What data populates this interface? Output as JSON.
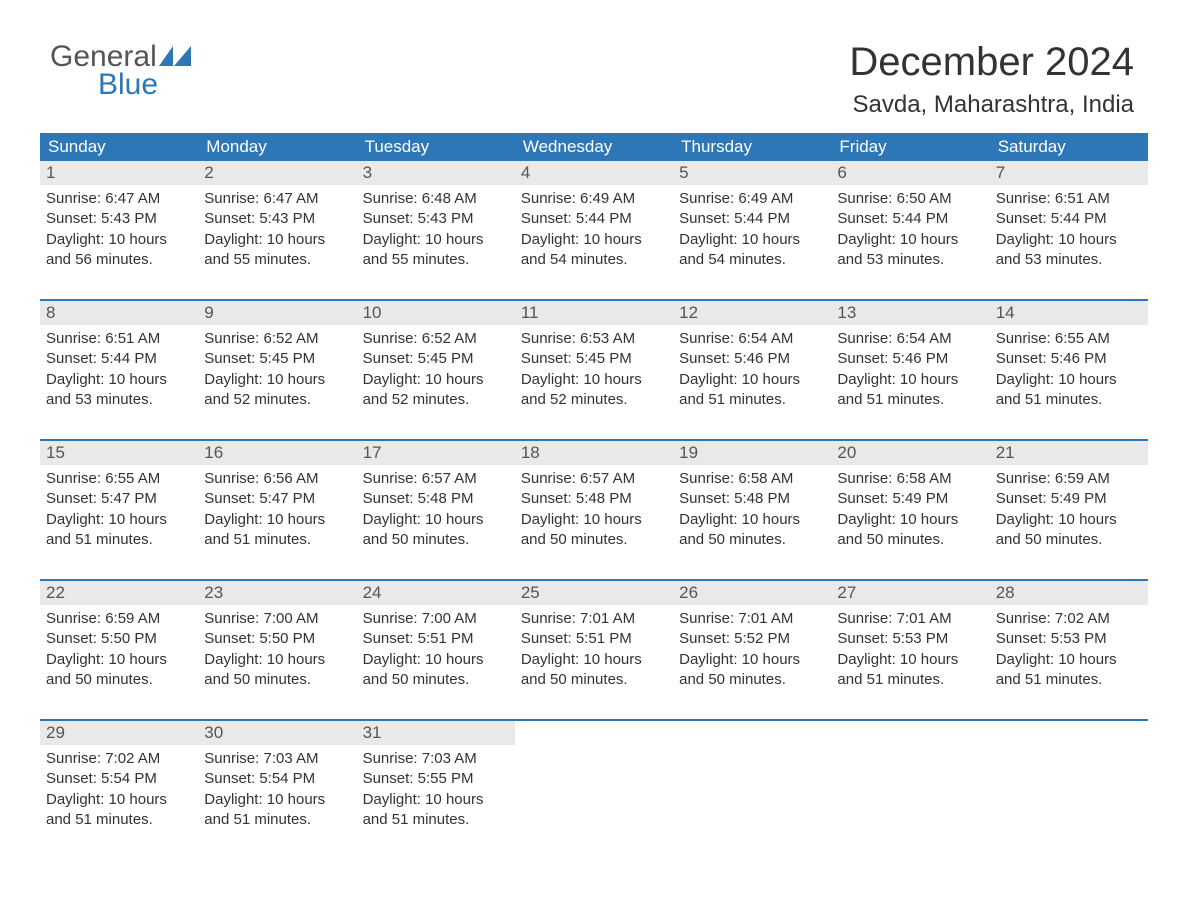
{
  "logo": {
    "text_general": "General",
    "text_blue": "Blue",
    "wing_color": "#2d77b6",
    "general_color": "#555555"
  },
  "header": {
    "month_title": "December 2024",
    "location": "Savda, Maharashtra, India",
    "title_fontsize": 40,
    "location_fontsize": 24,
    "text_color": "#333333"
  },
  "calendar_style": {
    "header_bg": "#2d77b6",
    "header_text_color": "#ffffff",
    "row_separator_color": "#2d77b6",
    "daynum_bg": "#e9e9e9",
    "daynum_color": "#555555",
    "body_text_color": "#333333",
    "background": "#ffffff"
  },
  "day_names": [
    "Sunday",
    "Monday",
    "Tuesday",
    "Wednesday",
    "Thursday",
    "Friday",
    "Saturday"
  ],
  "weeks": [
    [
      {
        "day": "1",
        "sunrise": "6:47 AM",
        "sunset": "5:43 PM",
        "daylight": "10 hours and 56 minutes."
      },
      {
        "day": "2",
        "sunrise": "6:47 AM",
        "sunset": "5:43 PM",
        "daylight": "10 hours and 55 minutes."
      },
      {
        "day": "3",
        "sunrise": "6:48 AM",
        "sunset": "5:43 PM",
        "daylight": "10 hours and 55 minutes."
      },
      {
        "day": "4",
        "sunrise": "6:49 AM",
        "sunset": "5:44 PM",
        "daylight": "10 hours and 54 minutes."
      },
      {
        "day": "5",
        "sunrise": "6:49 AM",
        "sunset": "5:44 PM",
        "daylight": "10 hours and 54 minutes."
      },
      {
        "day": "6",
        "sunrise": "6:50 AM",
        "sunset": "5:44 PM",
        "daylight": "10 hours and 53 minutes."
      },
      {
        "day": "7",
        "sunrise": "6:51 AM",
        "sunset": "5:44 PM",
        "daylight": "10 hours and 53 minutes."
      }
    ],
    [
      {
        "day": "8",
        "sunrise": "6:51 AM",
        "sunset": "5:44 PM",
        "daylight": "10 hours and 53 minutes."
      },
      {
        "day": "9",
        "sunrise": "6:52 AM",
        "sunset": "5:45 PM",
        "daylight": "10 hours and 52 minutes."
      },
      {
        "day": "10",
        "sunrise": "6:52 AM",
        "sunset": "5:45 PM",
        "daylight": "10 hours and 52 minutes."
      },
      {
        "day": "11",
        "sunrise": "6:53 AM",
        "sunset": "5:45 PM",
        "daylight": "10 hours and 52 minutes."
      },
      {
        "day": "12",
        "sunrise": "6:54 AM",
        "sunset": "5:46 PM",
        "daylight": "10 hours and 51 minutes."
      },
      {
        "day": "13",
        "sunrise": "6:54 AM",
        "sunset": "5:46 PM",
        "daylight": "10 hours and 51 minutes."
      },
      {
        "day": "14",
        "sunrise": "6:55 AM",
        "sunset": "5:46 PM",
        "daylight": "10 hours and 51 minutes."
      }
    ],
    [
      {
        "day": "15",
        "sunrise": "6:55 AM",
        "sunset": "5:47 PM",
        "daylight": "10 hours and 51 minutes."
      },
      {
        "day": "16",
        "sunrise": "6:56 AM",
        "sunset": "5:47 PM",
        "daylight": "10 hours and 51 minutes."
      },
      {
        "day": "17",
        "sunrise": "6:57 AM",
        "sunset": "5:48 PM",
        "daylight": "10 hours and 50 minutes."
      },
      {
        "day": "18",
        "sunrise": "6:57 AM",
        "sunset": "5:48 PM",
        "daylight": "10 hours and 50 minutes."
      },
      {
        "day": "19",
        "sunrise": "6:58 AM",
        "sunset": "5:48 PM",
        "daylight": "10 hours and 50 minutes."
      },
      {
        "day": "20",
        "sunrise": "6:58 AM",
        "sunset": "5:49 PM",
        "daylight": "10 hours and 50 minutes."
      },
      {
        "day": "21",
        "sunrise": "6:59 AM",
        "sunset": "5:49 PM",
        "daylight": "10 hours and 50 minutes."
      }
    ],
    [
      {
        "day": "22",
        "sunrise": "6:59 AM",
        "sunset": "5:50 PM",
        "daylight": "10 hours and 50 minutes."
      },
      {
        "day": "23",
        "sunrise": "7:00 AM",
        "sunset": "5:50 PM",
        "daylight": "10 hours and 50 minutes."
      },
      {
        "day": "24",
        "sunrise": "7:00 AM",
        "sunset": "5:51 PM",
        "daylight": "10 hours and 50 minutes."
      },
      {
        "day": "25",
        "sunrise": "7:01 AM",
        "sunset": "5:51 PM",
        "daylight": "10 hours and 50 minutes."
      },
      {
        "day": "26",
        "sunrise": "7:01 AM",
        "sunset": "5:52 PM",
        "daylight": "10 hours and 50 minutes."
      },
      {
        "day": "27",
        "sunrise": "7:01 AM",
        "sunset": "5:53 PM",
        "daylight": "10 hours and 51 minutes."
      },
      {
        "day": "28",
        "sunrise": "7:02 AM",
        "sunset": "5:53 PM",
        "daylight": "10 hours and 51 minutes."
      }
    ],
    [
      {
        "day": "29",
        "sunrise": "7:02 AM",
        "sunset": "5:54 PM",
        "daylight": "10 hours and 51 minutes."
      },
      {
        "day": "30",
        "sunrise": "7:03 AM",
        "sunset": "5:54 PM",
        "daylight": "10 hours and 51 minutes."
      },
      {
        "day": "31",
        "sunrise": "7:03 AM",
        "sunset": "5:55 PM",
        "daylight": "10 hours and 51 minutes."
      },
      {
        "empty": true
      },
      {
        "empty": true
      },
      {
        "empty": true
      },
      {
        "empty": true
      }
    ]
  ],
  "labels": {
    "sunrise_prefix": "Sunrise: ",
    "sunset_prefix": "Sunset: ",
    "daylight_prefix": "Daylight: "
  }
}
